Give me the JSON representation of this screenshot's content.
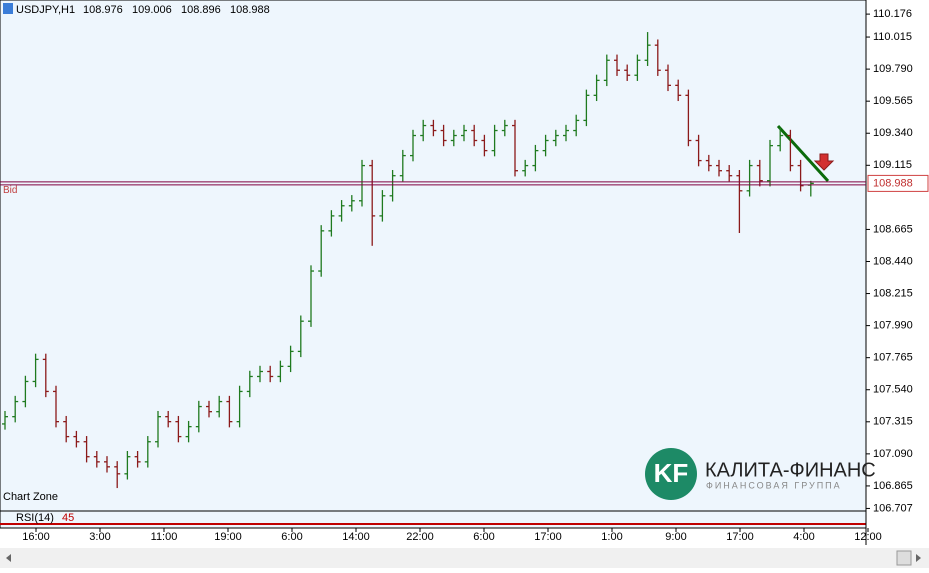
{
  "chart_data": {
    "type": "ohlc",
    "symbol": "USDJPY,H1",
    "open": [
      107.3,
      107.351,
      107.457,
      107.598,
      107.753,
      107.528,
      107.316,
      107.211,
      107.175,
      107.07,
      107.034,
      106.999,
      106.95,
      107.07,
      107.034,
      107.175,
      107.351,
      107.316,
      107.211,
      107.281,
      107.422,
      107.386,
      107.457,
      107.316,
      107.528,
      107.633,
      107.668,
      107.633,
      107.704,
      107.809,
      108.021,
      108.373,
      108.655,
      108.76,
      108.831,
      108.866,
      109.113,
      108.76,
      108.901,
      109.042,
      109.183,
      109.324,
      109.394,
      109.359,
      109.289,
      109.324,
      109.359,
      109.289,
      109.218,
      109.359,
      109.394,
      109.077,
      109.113,
      109.218,
      109.289,
      109.324,
      109.359,
      109.43,
      109.606,
      109.711,
      109.852,
      109.782,
      109.747,
      109.852,
      109.958,
      109.782,
      109.676,
      109.606,
      109.289,
      109.148,
      109.113,
      109.077,
      109.042,
      108.936,
      109.113,
      109.007,
      109.253,
      109.324,
      109.113,
      108.976
    ],
    "high": [
      107.391,
      107.497,
      107.638,
      107.793,
      107.793,
      107.568,
      107.356,
      107.251,
      107.215,
      107.11,
      107.074,
      107.039,
      107.11,
      107.11,
      107.215,
      107.391,
      107.391,
      107.356,
      107.321,
      107.462,
      107.462,
      107.497,
      107.497,
      107.568,
      107.673,
      107.708,
      107.708,
      107.744,
      107.849,
      108.061,
      108.413,
      108.695,
      108.8,
      108.871,
      108.906,
      109.153,
      109.153,
      108.941,
      109.082,
      109.223,
      109.364,
      109.434,
      109.434,
      109.399,
      109.364,
      109.399,
      109.399,
      109.329,
      109.399,
      109.434,
      109.434,
      109.153,
      109.258,
      109.329,
      109.364,
      109.399,
      109.47,
      109.646,
      109.751,
      109.892,
      109.892,
      109.822,
      109.892,
      110.05,
      109.998,
      109.822,
      109.716,
      109.646,
      109.329,
      109.188,
      109.153,
      109.117,
      109.082,
      109.153,
      109.153,
      109.293,
      109.38,
      109.364,
      109.153,
      109.006
    ],
    "low": [
      107.26,
      107.311,
      107.417,
      107.558,
      107.488,
      107.276,
      107.171,
      107.135,
      107.03,
      106.994,
      106.959,
      106.85,
      106.91,
      106.994,
      106.994,
      107.135,
      107.276,
      107.171,
      107.171,
      107.241,
      107.346,
      107.346,
      107.276,
      107.276,
      107.488,
      107.593,
      107.593,
      107.593,
      107.664,
      107.769,
      107.981,
      108.333,
      108.615,
      108.72,
      108.791,
      108.826,
      108.55,
      108.72,
      108.861,
      109.002,
      109.143,
      109.284,
      109.319,
      109.249,
      109.249,
      109.284,
      109.249,
      109.178,
      109.178,
      109.319,
      109.037,
      109.037,
      109.073,
      109.178,
      109.249,
      109.284,
      109.319,
      109.39,
      109.566,
      109.671,
      109.742,
      109.707,
      109.707,
      109.812,
      109.742,
      109.636,
      109.566,
      109.249,
      109.108,
      109.073,
      109.037,
      109.002,
      108.64,
      108.896,
      108.967,
      108.967,
      109.213,
      109.073,
      108.932,
      108.896
    ],
    "close": [
      107.351,
      107.457,
      107.598,
      107.753,
      107.528,
      107.316,
      107.211,
      107.175,
      107.07,
      107.034,
      106.999,
      106.95,
      107.07,
      107.034,
      107.175,
      107.351,
      107.316,
      107.211,
      107.281,
      107.422,
      107.386,
      107.457,
      107.316,
      107.528,
      107.633,
      107.668,
      107.633,
      107.704,
      107.809,
      108.021,
      108.373,
      108.655,
      108.76,
      108.831,
      108.866,
      109.113,
      108.76,
      108.901,
      109.042,
      109.183,
      109.324,
      109.394,
      109.359,
      109.289,
      109.324,
      109.359,
      109.289,
      109.218,
      109.359,
      109.394,
      109.077,
      109.113,
      109.218,
      109.289,
      109.324,
      109.359,
      109.43,
      109.606,
      109.711,
      109.852,
      109.782,
      109.747,
      109.852,
      109.958,
      109.782,
      109.676,
      109.606,
      109.289,
      109.148,
      109.113,
      109.077,
      109.042,
      108.936,
      109.113,
      109.007,
      109.253,
      109.324,
      109.113,
      108.972,
      108.988
    ],
    "bull_color": "#1f7a1f",
    "bear_color": "#8b1a1a",
    "ylim": [
      106.682,
      110.275
    ],
    "yticks": [
      110.176,
      110.015,
      {
        "value": 109.79,
        "label": "109.790"
      },
      109.565,
      {
        "value": 109.34,
        "label": "109.340"
      },
      109.115,
      108.665,
      {
        "value": 108.44,
        "label": "108.440"
      },
      108.215,
      {
        "value": 107.99,
        "label": "107.990"
      },
      107.765,
      {
        "value": 107.54,
        "label": "107.540"
      },
      107.315,
      {
        "value": 107.09,
        "label": "107.090"
      },
      106.865,
      106.707
    ],
    "xticks": [
      "16:00",
      "3:00",
      "11:00",
      "19:00",
      "6:00",
      "14:00",
      "22:00",
      "6:00",
      "17:00",
      "1:00",
      "9:00",
      "17:00",
      "4:00",
      "12:00"
    ],
    "grid": false,
    "bid": {
      "label": "Bid",
      "value": 108.988,
      "color": "#800040"
    },
    "zone_label": "Chart Zone",
    "indicator": {
      "label": "RSI(14)",
      "value": 45
    },
    "logo": {
      "mark": "KF",
      "name": "КАЛИТА-ФИНАНС",
      "tagline": "ФИНАНСОВАЯ ГРУППА"
    }
  }
}
